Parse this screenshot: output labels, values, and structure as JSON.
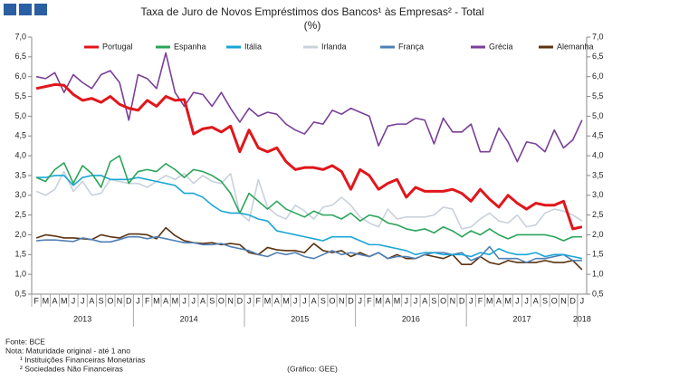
{
  "chart_data": {
    "type": "line",
    "title": "Taxa de Juro de Novos Empréstimos dos Bancos¹ às Empresas² - Total",
    "subtitle": "(%)",
    "categories": [
      "F",
      "M",
      "A",
      "M",
      "J",
      "J",
      "A",
      "S",
      "O",
      "N",
      "D",
      "J",
      "F",
      "M",
      "A",
      "M",
      "J",
      "J",
      "A",
      "S",
      "O",
      "N",
      "D",
      "J",
      "F",
      "M",
      "A",
      "M",
      "J",
      "J",
      "A",
      "S",
      "O",
      "N",
      "D",
      "J",
      "F",
      "M",
      "A",
      "M",
      "J",
      "J",
      "A",
      "S",
      "O",
      "N",
      "D",
      "J",
      "F",
      "M",
      "A",
      "M",
      "J",
      "J",
      "A",
      "S",
      "O",
      "N",
      "D",
      "J"
    ],
    "year_labels": [
      "2013",
      "2014",
      "2015",
      "2016",
      "2017",
      "2018"
    ],
    "ylim": [
      0.5,
      7.0
    ],
    "yticks": [
      {
        "value": 0.5,
        "label": "0,5"
      },
      {
        "value": 1.0,
        "label": "1,0"
      },
      {
        "value": 1.5,
        "label": "1,5"
      },
      {
        "value": 2.0,
        "label": "2,0"
      },
      {
        "value": 2.5,
        "label": "2,5"
      },
      {
        "value": 3.0,
        "label": "3,0"
      },
      {
        "value": 3.5,
        "label": "3,5"
      },
      {
        "value": 4.0,
        "label": "4,0"
      },
      {
        "value": 4.5,
        "label": "4,5"
      },
      {
        "value": 5.0,
        "label": "5,0"
      },
      {
        "value": 5.5,
        "label": "5,5"
      },
      {
        "value": 6.0,
        "label": "6,0"
      },
      {
        "value": 6.5,
        "label": "6,5"
      },
      {
        "value": 7.0,
        "label": "7,0"
      }
    ],
    "y2lim": [
      0.5,
      7.0
    ],
    "y2ticks": [
      {
        "value": 0.5,
        "label": "0,5"
      },
      {
        "value": 1.0,
        "label": "1,0"
      },
      {
        "value": 1.5,
        "label": "1,5"
      },
      {
        "value": 2.0,
        "label": "2,0"
      },
      {
        "value": 2.5,
        "label": "2,5"
      },
      {
        "value": 3.0,
        "label": "3,0"
      },
      {
        "value": 3.5,
        "label": "3,5"
      },
      {
        "value": 4.0,
        "label": "4,0"
      },
      {
        "value": 4.5,
        "label": "4,5"
      },
      {
        "value": 5.0,
        "label": "5,0"
      },
      {
        "value": 5.5,
        "label": "5,5"
      },
      {
        "value": 6.0,
        "label": "6,0"
      },
      {
        "value": 6.5,
        "label": "6,5"
      },
      {
        "value": 7.0,
        "label": "7,0"
      }
    ],
    "grid": false,
    "legend": "top",
    "series": [
      {
        "name": "Portugal",
        "color": "#e0161b",
        "values": [
          5.7,
          5.75,
          5.8,
          5.78,
          5.55,
          5.4,
          5.45,
          5.35,
          5.5,
          5.3,
          5.2,
          5.15,
          5.4,
          5.25,
          5.5,
          5.4,
          5.42,
          4.55,
          4.68,
          4.72,
          4.6,
          4.75,
          4.1,
          4.65,
          4.2,
          4.1,
          4.2,
          3.85,
          3.65,
          3.7,
          3.7,
          3.65,
          3.75,
          3.6,
          3.15,
          3.65,
          3.5,
          3.15,
          3.3,
          3.4,
          2.95,
          3.2,
          3.1,
          3.1,
          3.1,
          3.15,
          3.05,
          2.85,
          3.15,
          2.9,
          2.7,
          3.0,
          2.8,
          2.65,
          2.8,
          2.75,
          2.75,
          2.85,
          2.15,
          2.2
        ]
      },
      {
        "name": "Espanha",
        "color": "#2aa55a",
        "values": [
          3.45,
          3.35,
          3.65,
          3.82,
          3.3,
          3.75,
          3.55,
          3.2,
          3.85,
          4.0,
          3.3,
          3.6,
          3.65,
          3.6,
          3.8,
          3.65,
          3.45,
          3.65,
          3.6,
          3.5,
          3.35,
          3.05,
          2.55,
          3.05,
          2.85,
          2.65,
          2.85,
          2.65,
          2.55,
          2.45,
          2.6,
          2.5,
          2.5,
          2.4,
          2.55,
          2.35,
          2.5,
          2.45,
          2.3,
          2.25,
          2.15,
          2.1,
          2.15,
          2.05,
          2.2,
          2.1,
          1.95,
          2.1,
          2.0,
          2.15,
          2.0,
          1.9,
          2.0,
          2.0,
          2.0,
          2.0,
          1.95,
          1.85,
          1.95,
          1.95
        ]
      },
      {
        "name": "Itália",
        "color": "#1aa6d6",
        "values": [
          3.45,
          3.45,
          3.5,
          3.5,
          3.25,
          3.45,
          3.5,
          3.5,
          3.4,
          3.4,
          3.4,
          3.45,
          3.4,
          3.35,
          3.3,
          3.25,
          3.05,
          3.05,
          2.95,
          2.75,
          2.6,
          2.55,
          2.55,
          2.5,
          2.4,
          2.35,
          2.1,
          2.05,
          2.0,
          1.95,
          1.9,
          1.85,
          1.95,
          1.95,
          1.95,
          1.85,
          1.75,
          1.75,
          1.7,
          1.65,
          1.6,
          1.5,
          1.55,
          1.55,
          1.5,
          1.5,
          1.5,
          1.45,
          1.55,
          1.5,
          1.65,
          1.55,
          1.5,
          1.5,
          1.55,
          1.45,
          1.5,
          1.5,
          1.45,
          1.4
        ]
      },
      {
        "name": "Irlanda",
        "color": "#c9d1dc",
        "values": [
          3.1,
          3.0,
          3.15,
          3.6,
          3.1,
          3.35,
          3.0,
          3.05,
          3.4,
          3.35,
          3.3,
          3.3,
          3.2,
          3.35,
          3.5,
          3.4,
          3.55,
          3.3,
          3.5,
          3.35,
          3.3,
          3.55,
          2.55,
          2.35,
          3.4,
          2.7,
          2.5,
          2.4,
          2.75,
          2.6,
          2.4,
          2.7,
          2.75,
          2.95,
          2.75,
          2.45,
          2.3,
          2.2,
          2.65,
          2.4,
          2.45,
          2.45,
          2.45,
          2.5,
          2.7,
          2.65,
          2.15,
          2.2,
          2.4,
          2.55,
          2.35,
          2.3,
          2.5,
          2.2,
          2.25,
          2.55,
          2.65,
          2.6,
          2.5,
          2.35
        ]
      },
      {
        "name": "França",
        "color": "#4f7fb5",
        "values": [
          1.85,
          1.87,
          1.87,
          1.85,
          1.83,
          1.92,
          1.88,
          1.82,
          1.82,
          1.88,
          1.95,
          1.95,
          1.9,
          1.95,
          1.9,
          1.85,
          1.8,
          1.8,
          1.75,
          1.75,
          1.78,
          1.7,
          1.65,
          1.6,
          1.5,
          1.45,
          1.55,
          1.5,
          1.55,
          1.45,
          1.4,
          1.5,
          1.6,
          1.5,
          1.55,
          1.5,
          1.45,
          1.55,
          1.4,
          1.45,
          1.45,
          1.4,
          1.5,
          1.55,
          1.55,
          1.5,
          1.55,
          1.35,
          1.45,
          1.7,
          1.4,
          1.4,
          1.4,
          1.3,
          1.4,
          1.4,
          1.45,
          1.5,
          1.35,
          1.35
        ]
      },
      {
        "name": "Grécia",
        "color": "#7a3f98",
        "values": [
          6.0,
          5.95,
          6.1,
          5.6,
          6.05,
          5.85,
          5.7,
          6.05,
          6.15,
          5.85,
          4.9,
          6.05,
          5.95,
          5.7,
          6.6,
          5.6,
          5.25,
          5.6,
          5.55,
          5.25,
          5.6,
          5.2,
          4.85,
          5.2,
          5.0,
          5.1,
          5.05,
          4.8,
          4.65,
          4.55,
          4.85,
          4.8,
          5.15,
          5.05,
          5.2,
          5.1,
          5.0,
          4.25,
          4.75,
          4.8,
          4.8,
          4.95,
          4.9,
          4.3,
          4.95,
          4.6,
          4.6,
          4.8,
          4.1,
          4.1,
          4.7,
          4.35,
          3.85,
          4.35,
          4.3,
          4.1,
          4.65,
          4.2,
          4.4,
          4.9
        ]
      },
      {
        "name": "Alemanha",
        "color": "#5a3312",
        "values": [
          1.92,
          2.0,
          1.97,
          1.92,
          1.92,
          1.9,
          1.88,
          2.0,
          1.95,
          1.92,
          2.02,
          2.02,
          2.0,
          1.9,
          2.18,
          1.98,
          1.85,
          1.8,
          1.78,
          1.8,
          1.75,
          1.78,
          1.75,
          1.55,
          1.5,
          1.68,
          1.62,
          1.6,
          1.6,
          1.55,
          1.78,
          1.6,
          1.55,
          1.6,
          1.45,
          1.55,
          1.45,
          1.55,
          1.4,
          1.5,
          1.4,
          1.4,
          1.5,
          1.45,
          1.4,
          1.5,
          1.25,
          1.25,
          1.45,
          1.3,
          1.25,
          1.35,
          1.3,
          1.3,
          1.3,
          1.35,
          1.3,
          1.3,
          1.35,
          1.12
        ]
      }
    ],
    "notes": [
      "Fonte: BCE",
      "Nota: Maturidade original - até 1 ano",
      "¹ Instituições Financeiras Monetárias",
      "² Sociedades Não Financeiras"
    ],
    "credit": "(Gráfico: GEE)"
  }
}
